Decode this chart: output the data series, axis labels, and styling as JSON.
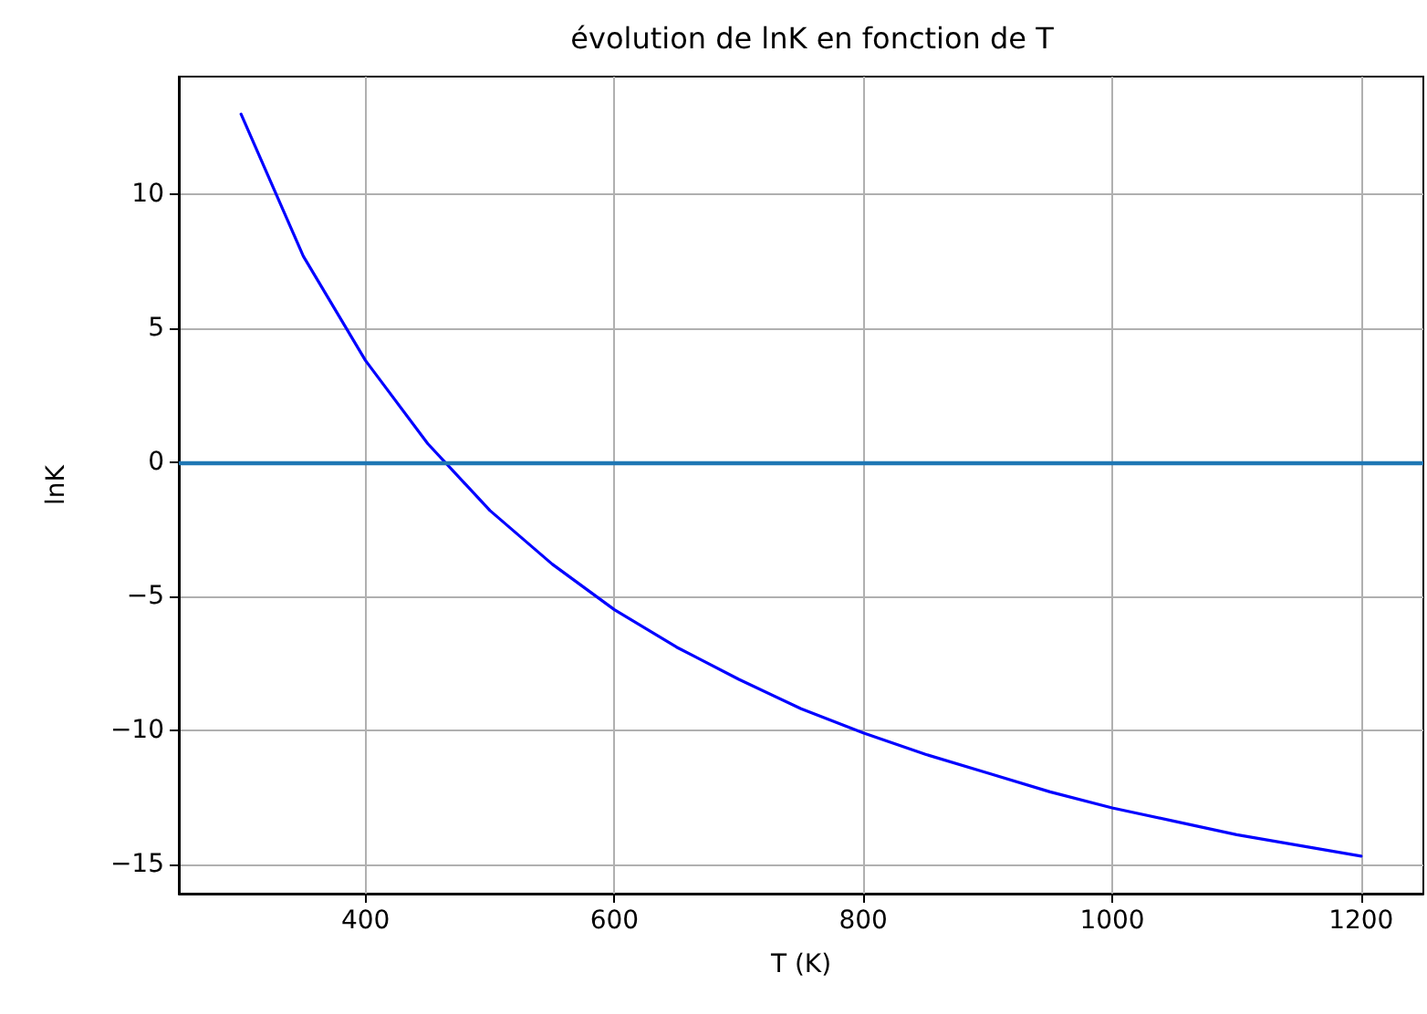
{
  "chart_data": {
    "type": "line",
    "title": "évolution de lnK en fonction de T",
    "xlabel": "T (K)",
    "ylabel": "lnK",
    "x": [
      300,
      350,
      400,
      450,
      500,
      550,
      600,
      650,
      700,
      750,
      800,
      850,
      900,
      950,
      1000,
      1050,
      1100,
      1150,
      1200
    ],
    "series": [
      {
        "color": "#0000ff",
        "values": [
          13.0,
          7.7,
          3.8,
          0.7,
          -1.8,
          -3.8,
          -5.5,
          -6.9,
          -8.1,
          -9.2,
          -10.1,
          -10.9,
          -11.6,
          -12.3,
          -12.9,
          -13.4,
          -13.9,
          -14.3,
          -14.7
        ]
      }
    ],
    "xlim": [
      250,
      1250
    ],
    "xticks": [
      400,
      600,
      800,
      1000,
      1200
    ],
    "ylim": [
      -16.1,
      14.4
    ],
    "yticks": [
      -15,
      -10,
      -5,
      0,
      5,
      10
    ],
    "ref_lines": [
      {
        "axis": "y",
        "value": 0,
        "color": "#1f77b4"
      }
    ],
    "grid": true,
    "marker": "none",
    "line_style": "solid"
  }
}
